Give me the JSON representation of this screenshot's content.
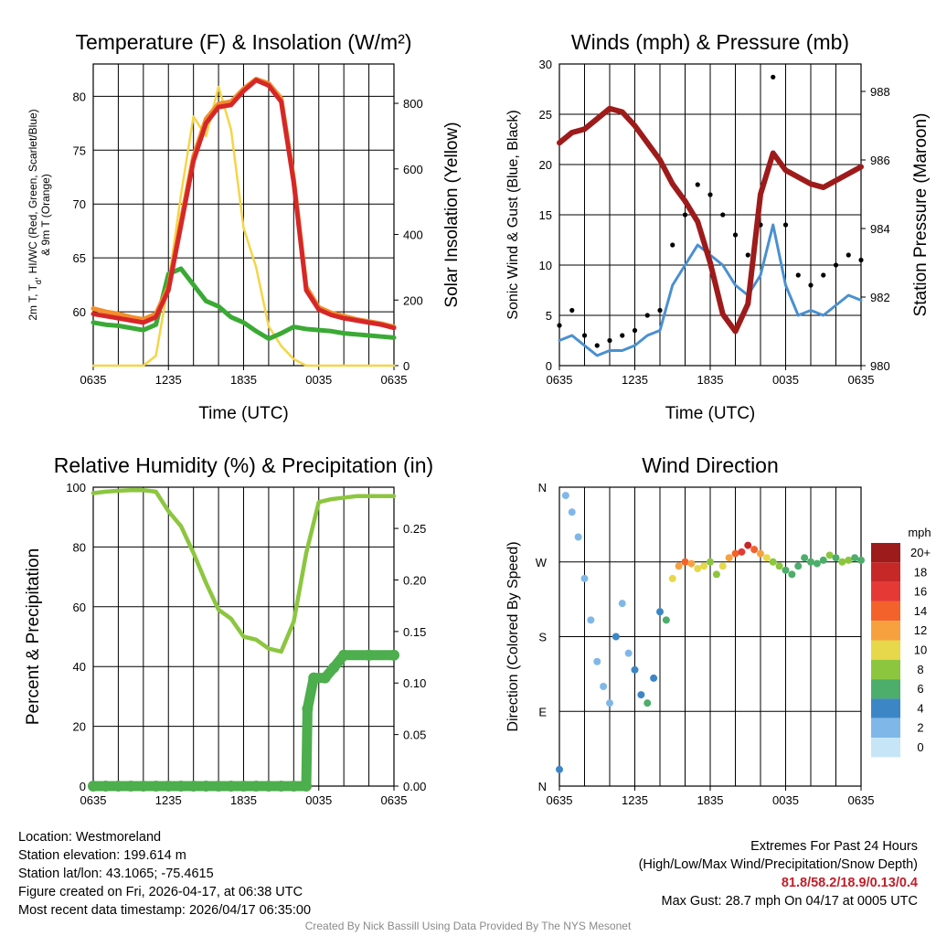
{
  "chart_data": [
    {
      "type": "line",
      "title": "Temperature (F) & Insolation (W/m²)",
      "xlabel": "Time (UTC)",
      "ylabel": "2m T, Td, HI/WC (Red, Green, Scarlet/Blue) & 9m T (Orange)",
      "ylabel_line1": "2m T, T",
      "ylabel_sub": "d",
      "ylabel_line1_rest": ", HI/WC (Red, Green, Scarlet/Blue)",
      "ylabel_line2": "& 9m T (Orange)",
      "y2label": "Solar Insolation (Yellow)",
      "x_ticks": [
        "0635",
        "1235",
        "1835",
        "0035",
        "0635"
      ],
      "ylim": [
        55,
        83
      ],
      "y_ticks": [
        60,
        65,
        70,
        75,
        80
      ],
      "y2lim": [
        0,
        920
      ],
      "y2_ticks": [
        0,
        200,
        400,
        600,
        800
      ],
      "series": [
        {
          "name": "2m T",
          "color": "#d62728",
          "hours": [
            0,
            1,
            2,
            3,
            4,
            5,
            6,
            7,
            8,
            9,
            10,
            11,
            12,
            13,
            14,
            15,
            16,
            17,
            18,
            19,
            20,
            21,
            22,
            23,
            24
          ],
          "values": [
            59.8,
            59.6,
            59.4,
            59.2,
            59.0,
            59.5,
            62.0,
            68.0,
            74.0,
            77.5,
            79.0,
            79.2,
            80.5,
            81.5,
            81.0,
            79.5,
            72.0,
            62.0,
            60.2,
            59.7,
            59.4,
            59.2,
            59.0,
            58.8,
            58.5
          ]
        },
        {
          "name": "9m T",
          "color": "#f28e2b",
          "hours": [
            0,
            1,
            2,
            3,
            4,
            5,
            6,
            7,
            8,
            9,
            10,
            11,
            12,
            13,
            14,
            15,
            16,
            17,
            18,
            19,
            20,
            21,
            22,
            23,
            24
          ],
          "values": [
            60.3,
            60.0,
            59.8,
            59.5,
            59.3,
            59.8,
            62.3,
            68.4,
            74.4,
            77.9,
            79.3,
            79.5,
            80.7,
            81.6,
            81.2,
            79.8,
            72.3,
            62.3,
            60.4,
            59.9,
            59.6,
            59.3,
            59.1,
            58.9,
            58.6
          ]
        },
        {
          "name": "Td",
          "color": "#3aaa35",
          "hours": [
            0,
            1,
            2,
            3,
            4,
            5,
            6,
            7,
            8,
            9,
            10,
            11,
            12,
            13,
            14,
            15,
            16,
            17,
            18,
            19,
            20,
            21,
            22,
            23,
            24
          ],
          "values": [
            59.0,
            58.8,
            58.7,
            58.5,
            58.3,
            58.8,
            63.5,
            64.0,
            62.5,
            61.0,
            60.5,
            59.5,
            59.0,
            58.2,
            57.5,
            58.0,
            58.6,
            58.4,
            58.3,
            58.2,
            58.0,
            57.9,
            57.8,
            57.7,
            57.6
          ]
        },
        {
          "name": "Solar Insolation",
          "color": "#f5d547",
          "axis": "y2",
          "hours": [
            0,
            1,
            2,
            3,
            4,
            5,
            6,
            7,
            8,
            9,
            10,
            11,
            12,
            13,
            14,
            15,
            16,
            17,
            18,
            19,
            20,
            21,
            22,
            23,
            24
          ],
          "values": [
            0,
            0,
            0,
            0,
            0,
            30,
            250,
            520,
            760,
            700,
            850,
            720,
            420,
            300,
            120,
            60,
            20,
            0,
            0,
            0,
            0,
            0,
            0,
            0,
            0
          ]
        }
      ]
    },
    {
      "type": "line",
      "title": "Winds (mph) & Pressure (mb)",
      "xlabel": "Time (UTC)",
      "ylabel": "Sonic Wind & Gust (Blue, Black)",
      "y2label": "Station Pressure (Maroon)",
      "x_ticks": [
        "0635",
        "1235",
        "1835",
        "0035",
        "0635"
      ],
      "ylim": [
        0,
        30
      ],
      "y_ticks": [
        0,
        5,
        10,
        15,
        20,
        25,
        30
      ],
      "y2lim": [
        980,
        988.8
      ],
      "y2_ticks": [
        980,
        982,
        984,
        986,
        988
      ],
      "series": [
        {
          "name": "Sonic Wind",
          "color": "#4a90d0",
          "hours": [
            0,
            1,
            2,
            3,
            4,
            5,
            6,
            7,
            8,
            9,
            10,
            11,
            12,
            13,
            14,
            15,
            16,
            17,
            18,
            19,
            20,
            21,
            22,
            23,
            24
          ],
          "values": [
            2.5,
            3.0,
            2.0,
            1.0,
            1.5,
            1.5,
            2.0,
            3.0,
            3.5,
            8.0,
            10.0,
            12.0,
            11.0,
            10.0,
            8.0,
            7.0,
            9.0,
            14.0,
            8.0,
            5.0,
            5.5,
            5.0,
            6.0,
            7.0,
            6.5
          ]
        },
        {
          "name": "Gust",
          "color": "#000000",
          "marker": "dot",
          "hours": [
            0,
            1,
            2,
            3,
            4,
            5,
            6,
            7,
            8,
            9,
            10,
            11,
            12,
            13,
            14,
            15,
            16,
            17,
            18,
            19,
            20,
            21,
            22,
            23,
            24
          ],
          "values": [
            4.0,
            5.5,
            3.0,
            2.0,
            2.5,
            3.0,
            3.5,
            5.0,
            5.5,
            12.0,
            15.0,
            18.0,
            17.0,
            15.0,
            13.0,
            11.0,
            14.0,
            28.7,
            14.0,
            9.0,
            8.0,
            9.0,
            10.0,
            11.0,
            10.5
          ]
        },
        {
          "name": "Station Pressure",
          "color": "#9e1b1b",
          "axis": "y2",
          "hours": [
            0,
            1,
            2,
            3,
            4,
            5,
            6,
            7,
            8,
            9,
            10,
            11,
            12,
            13,
            14,
            15,
            16,
            17,
            18,
            19,
            20,
            21,
            22,
            23,
            24
          ],
          "values": [
            986.5,
            986.8,
            986.9,
            987.2,
            987.5,
            987.4,
            987.0,
            986.5,
            986.0,
            985.3,
            984.8,
            984.2,
            983.0,
            981.5,
            981.0,
            981.8,
            985.0,
            986.2,
            985.7,
            985.5,
            985.3,
            985.2,
            985.4,
            985.6,
            985.8
          ]
        }
      ]
    },
    {
      "type": "line",
      "title": "Relative Humidity (%) & Precipitation (in)",
      "xlabel": "",
      "ylabel": "Percent & Precipitation",
      "x_ticks": [
        "0635",
        "1235",
        "1835",
        "0035",
        "0635"
      ],
      "ylim": [
        0,
        100
      ],
      "y_ticks": [
        0,
        20,
        40,
        60,
        80,
        100
      ],
      "y2lim": [
        0,
        0.29
      ],
      "y2_ticks": [
        "0.00",
        "0.05",
        "0.10",
        "0.15",
        "0.20",
        "0.25"
      ],
      "series": [
        {
          "name": "Relative Humidity",
          "color": "#8cc63f",
          "hours": [
            0,
            1,
            2,
            3,
            4,
            5,
            6,
            7,
            8,
            9,
            10,
            11,
            12,
            13,
            14,
            15,
            16,
            17,
            18,
            19,
            20,
            21,
            22,
            23,
            24
          ],
          "values": [
            98,
            98.5,
            98.8,
            99,
            99,
            98.5,
            92,
            87,
            78,
            68,
            59,
            56,
            50,
            49,
            46,
            45,
            55,
            78,
            95,
            96,
            96.5,
            97,
            97,
            97,
            97
          ]
        },
        {
          "name": "Precipitation",
          "color": "#4cae4c",
          "axis": "y2",
          "marker": "dot",
          "hours": [
            0,
            1,
            2,
            3,
            4,
            5,
            6,
            7,
            8,
            9,
            10,
            11,
            12,
            13,
            14,
            15,
            16,
            17,
            17.1,
            17.6,
            18.5,
            19.2,
            20,
            22,
            24
          ],
          "values": [
            0,
            0,
            0,
            0,
            0,
            0,
            0,
            0,
            0,
            0,
            0,
            0,
            0,
            0,
            0,
            0,
            0,
            0,
            0.075,
            0.105,
            0.105,
            0.115,
            0.127,
            0.127,
            0.127
          ]
        }
      ]
    },
    {
      "type": "scatter",
      "title": "Wind Direction",
      "xlabel": "",
      "ylabel": "Direction (Colored By Speed)",
      "x_ticks": [
        "0635",
        "1235",
        "1835",
        "0035",
        "0635"
      ],
      "y_ticks": [
        "N",
        "E",
        "S",
        "W",
        "N"
      ],
      "ylim": [
        0,
        360
      ],
      "colorbar": {
        "label": "mph",
        "levels": [
          "20+",
          "18",
          "16",
          "14",
          "12",
          "10",
          "8",
          "6",
          "4",
          "2",
          "0"
        ],
        "colors": [
          "#9e1b1b",
          "#c62828",
          "#e53935",
          "#f4622c",
          "#f7a13e",
          "#e6d84a",
          "#8cc63f",
          "#4cae6a",
          "#3d86c6",
          "#7fb8e8",
          "#c6e6f8"
        ]
      },
      "series": [
        {
          "name": "Direction",
          "hours": [
            0,
            0.5,
            1,
            1.5,
            2,
            2.5,
            3,
            3.5,
            4,
            4.5,
            5,
            5.5,
            6,
            6.5,
            7,
            7.5,
            8,
            8.5,
            9,
            9.5,
            10,
            10.5,
            11,
            11.5,
            12,
            12.5,
            13,
            13.5,
            14,
            14.5,
            15,
            15.5,
            16,
            16.5,
            17,
            17.5,
            18,
            18.5,
            19,
            19.5,
            20,
            20.5,
            21,
            21.5,
            22,
            22.5,
            23,
            23.5,
            24
          ],
          "values": [
            20,
            350,
            330,
            300,
            250,
            200,
            150,
            120,
            100,
            180,
            220,
            160,
            140,
            110,
            100,
            130,
            210,
            200,
            250,
            265,
            270,
            268,
            262,
            265,
            270,
            255,
            265,
            275,
            280,
            282,
            290,
            285,
            280,
            275,
            270,
            265,
            260,
            255,
            265,
            275,
            270,
            268,
            272,
            278,
            275,
            270,
            272,
            275,
            272
          ],
          "speeds": [
            3,
            2,
            1,
            1,
            2,
            1,
            1,
            2,
            2,
            3,
            2,
            2,
            3,
            4,
            5,
            4,
            4,
            6,
            9,
            11,
            13,
            12,
            10,
            9,
            8,
            7,
            10,
            12,
            14,
            16,
            18,
            14,
            12,
            10,
            8,
            7,
            6,
            6,
            5,
            5,
            5,
            6,
            6,
            7,
            6,
            7,
            7,
            6,
            6
          ]
        }
      ]
    }
  ],
  "info": {
    "location": "Location: Westmoreland",
    "elevation": "Station elevation: 199.614 m",
    "latlon": "Station lat/lon: 43.1065; -75.4615",
    "created": "Figure created on Fri, 2026-04-17, at 06:38 UTC",
    "recent": "Most recent data timestamp: 2026/04/17 06:35:00"
  },
  "extremes": {
    "title": "Extremes For Past 24 Hours",
    "subtitle": "(High/Low/Max Wind/Precipitation/Snow Depth)",
    "values": "81.8/58.2/18.9/0.13/0.4",
    "max_gust": "Max Gust: 28.7 mph On 04/17 at 0005 UTC"
  },
  "credit": "Created By Nick Bassill Using Data Provided By The NYS Mesonet"
}
